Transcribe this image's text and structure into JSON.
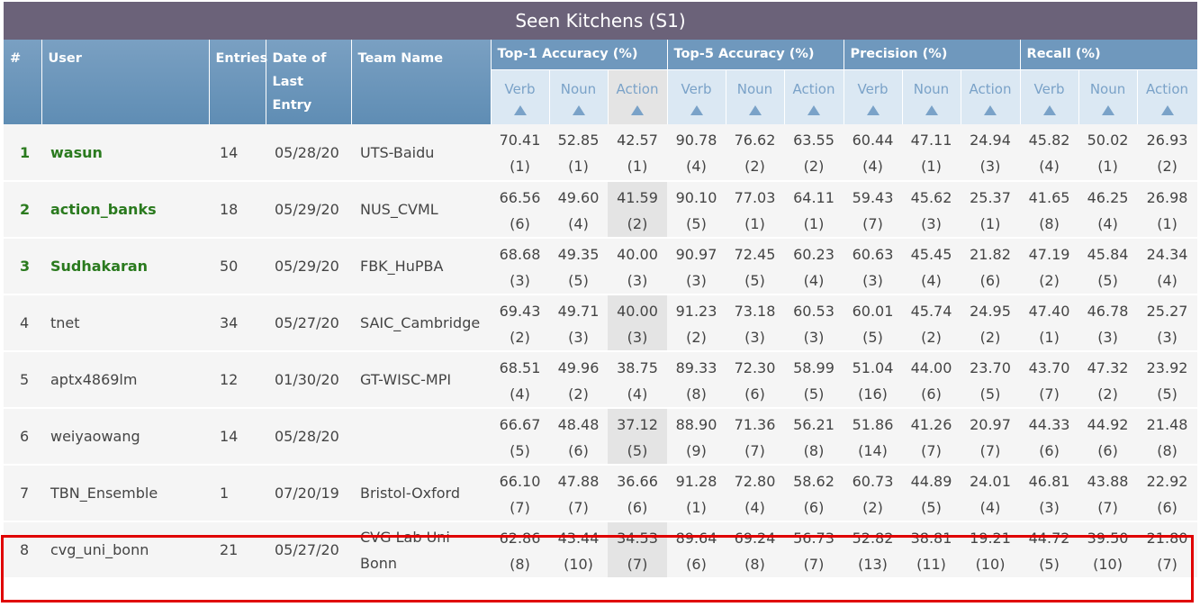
{
  "title": "Seen Kitchens (S1)",
  "headers": {
    "rank": "#",
    "user": "User",
    "entries": "Entries",
    "date": "Date of Last Entry",
    "team": "Team Name",
    "groups": [
      "Top-1 Accuracy (%)",
      "Top-5 Accuracy (%)",
      "Precision (%)",
      "Recall (%)"
    ],
    "sub": [
      "Verb",
      "Noun",
      "Action"
    ]
  },
  "highlight_color": "#e00000",
  "top_user_color": "#2a7a1e",
  "rows": [
    {
      "rank": "1",
      "user": "wasun",
      "entries": "14",
      "date": "05/28/20",
      "team": "UTS-Baidu",
      "vals": [
        [
          "70.41",
          "(1)"
        ],
        [
          "52.85",
          "(1)"
        ],
        [
          "42.57",
          "(1)"
        ],
        [
          "90.78",
          "(4)"
        ],
        [
          "76.62",
          "(2)"
        ],
        [
          "63.55",
          "(2)"
        ],
        [
          "60.44",
          "(4)"
        ],
        [
          "47.11",
          "(1)"
        ],
        [
          "24.94",
          "(3)"
        ],
        [
          "45.82",
          "(4)"
        ],
        [
          "50.02",
          "(1)"
        ],
        [
          "26.93",
          "(2)"
        ]
      ]
    },
    {
      "rank": "2",
      "user": "action_banks",
      "entries": "18",
      "date": "05/29/20",
      "team": "NUS_CVML",
      "vals": [
        [
          "66.56",
          "(6)"
        ],
        [
          "49.60",
          "(4)"
        ],
        [
          "41.59",
          "(2)"
        ],
        [
          "90.10",
          "(5)"
        ],
        [
          "77.03",
          "(1)"
        ],
        [
          "64.11",
          "(1)"
        ],
        [
          "59.43",
          "(7)"
        ],
        [
          "45.62",
          "(3)"
        ],
        [
          "25.37",
          "(1)"
        ],
        [
          "41.65",
          "(8)"
        ],
        [
          "46.25",
          "(4)"
        ],
        [
          "26.98",
          "(1)"
        ]
      ]
    },
    {
      "rank": "3",
      "user": "Sudhakaran",
      "entries": "50",
      "date": "05/29/20",
      "team": "FBK_HuPBA",
      "vals": [
        [
          "68.68",
          "(3)"
        ],
        [
          "49.35",
          "(5)"
        ],
        [
          "40.00",
          "(3)"
        ],
        [
          "90.97",
          "(3)"
        ],
        [
          "72.45",
          "(5)"
        ],
        [
          "60.23",
          "(4)"
        ],
        [
          "60.63",
          "(3)"
        ],
        [
          "45.45",
          "(4)"
        ],
        [
          "21.82",
          "(6)"
        ],
        [
          "47.19",
          "(2)"
        ],
        [
          "45.84",
          "(5)"
        ],
        [
          "24.34",
          "(4)"
        ]
      ]
    },
    {
      "rank": "4",
      "user": "tnet",
      "entries": "34",
      "date": "05/27/20",
      "team": "SAIC_Cambridge",
      "vals": [
        [
          "69.43",
          "(2)"
        ],
        [
          "49.71",
          "(3)"
        ],
        [
          "40.00",
          "(3)"
        ],
        [
          "91.23",
          "(2)"
        ],
        [
          "73.18",
          "(3)"
        ],
        [
          "60.53",
          "(3)"
        ],
        [
          "60.01",
          "(5)"
        ],
        [
          "45.74",
          "(2)"
        ],
        [
          "24.95",
          "(2)"
        ],
        [
          "47.40",
          "(1)"
        ],
        [
          "46.78",
          "(3)"
        ],
        [
          "25.27",
          "(3)"
        ]
      ]
    },
    {
      "rank": "5",
      "user": "aptx4869lm",
      "entries": "12",
      "date": "01/30/20",
      "team": "GT-WISC-MPI",
      "vals": [
        [
          "68.51",
          "(4)"
        ],
        [
          "49.96",
          "(2)"
        ],
        [
          "38.75",
          "(4)"
        ],
        [
          "89.33",
          "(8)"
        ],
        [
          "72.30",
          "(6)"
        ],
        [
          "58.99",
          "(5)"
        ],
        [
          "51.04",
          "(16)"
        ],
        [
          "44.00",
          "(6)"
        ],
        [
          "23.70",
          "(5)"
        ],
        [
          "43.70",
          "(7)"
        ],
        [
          "47.32",
          "(2)"
        ],
        [
          "23.92",
          "(5)"
        ]
      ]
    },
    {
      "rank": "6",
      "user": "weiyaowang",
      "entries": "14",
      "date": "05/28/20",
      "team": "",
      "vals": [
        [
          "66.67",
          "(5)"
        ],
        [
          "48.48",
          "(6)"
        ],
        [
          "37.12",
          "(5)"
        ],
        [
          "88.90",
          "(9)"
        ],
        [
          "71.36",
          "(7)"
        ],
        [
          "56.21",
          "(8)"
        ],
        [
          "51.86",
          "(14)"
        ],
        [
          "41.26",
          "(7)"
        ],
        [
          "20.97",
          "(7)"
        ],
        [
          "44.33",
          "(6)"
        ],
        [
          "44.92",
          "(6)"
        ],
        [
          "21.48",
          "(8)"
        ]
      ]
    },
    {
      "rank": "7",
      "user": "TBN_Ensemble",
      "entries": "1",
      "date": "07/20/19",
      "team": "Bristol-Oxford",
      "vals": [
        [
          "66.10",
          "(7)"
        ],
        [
          "47.88",
          "(7)"
        ],
        [
          "36.66",
          "(6)"
        ],
        [
          "91.28",
          "(1)"
        ],
        [
          "72.80",
          "(4)"
        ],
        [
          "58.62",
          "(6)"
        ],
        [
          "60.73",
          "(2)"
        ],
        [
          "44.89",
          "(5)"
        ],
        [
          "24.01",
          "(4)"
        ],
        [
          "46.81",
          "(3)"
        ],
        [
          "43.88",
          "(7)"
        ],
        [
          "22.92",
          "(6)"
        ]
      ]
    },
    {
      "rank": "8",
      "user": "cvg_uni_bonn",
      "entries": "21",
      "date": "05/27/20",
      "team": "CVG Lab Uni Bonn",
      "vals": [
        [
          "62.86",
          "(8)"
        ],
        [
          "43.44",
          "(10)"
        ],
        [
          "34.53",
          "(7)"
        ],
        [
          "89.64",
          "(6)"
        ],
        [
          "69.24",
          "(8)"
        ],
        [
          "56.73",
          "(7)"
        ],
        [
          "52.82",
          "(13)"
        ],
        [
          "38.81",
          "(11)"
        ],
        [
          "19.21",
          "(10)"
        ],
        [
          "44.72",
          "(5)"
        ],
        [
          "39.50",
          "(10)"
        ],
        [
          "21.80",
          "(7)"
        ]
      ]
    }
  ]
}
